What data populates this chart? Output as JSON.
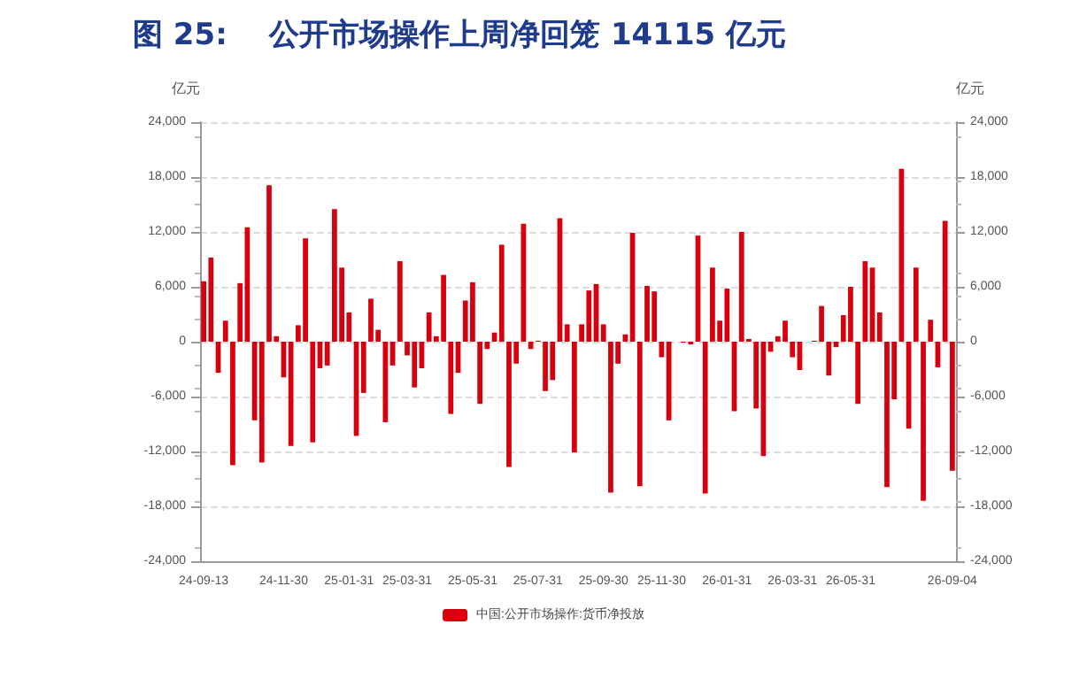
{
  "chart_data": {
    "type": "bar",
    "title": "图 25:    公开市场操作上周净回笼 14115 亿元",
    "ylabel": "亿元",
    "y2label": "亿元",
    "categories": [
      "24-09-13",
      null,
      null,
      null,
      null,
      null,
      null,
      null,
      null,
      null,
      null,
      "24-11-30",
      null,
      null,
      null,
      null,
      null,
      null,
      null,
      null,
      "25-01-31",
      null,
      null,
      null,
      null,
      null,
      null,
      null,
      "25-03-31",
      null,
      null,
      null,
      null,
      null,
      null,
      null,
      null,
      "25-05-31",
      null,
      null,
      null,
      null,
      null,
      null,
      null,
      null,
      "25-07-31",
      null,
      null,
      null,
      null,
      null,
      null,
      null,
      null,
      "25-09-30",
      null,
      null,
      null,
      null,
      null,
      null,
      null,
      "25-11-30",
      null,
      null,
      null,
      null,
      null,
      null,
      null,
      null,
      "26-01-31",
      null,
      null,
      null,
      null,
      null,
      null,
      null,
      null,
      "26-03-31",
      null,
      null,
      null,
      null,
      null,
      null,
      null,
      "26-05-31",
      null,
      null,
      null,
      null,
      null,
      null,
      null,
      null,
      null,
      null,
      null,
      null,
      null,
      "26-09-04"
    ],
    "series": [
      {
        "name": "中国:公开市场操作:货币净投放",
        "color": "#d7000f",
        "values": [
          6600,
          9200,
          -3400,
          2300,
          -13500,
          6400,
          12500,
          -8600,
          -13200,
          17100,
          600,
          -3900,
          -11400,
          1800,
          11300,
          -11000,
          -2900,
          -2600,
          14500,
          8100,
          3200,
          -10300,
          -5600,
          4700,
          1300,
          -8800,
          -2600,
          8800,
          -1500,
          -5000,
          -2900,
          3200,
          600,
          7300,
          -7900,
          -3400,
          4500,
          6500,
          -6800,
          -800,
          1000,
          10600,
          -13700,
          -2400,
          12900,
          -800,
          100,
          -5400,
          -4200,
          13500,
          1900,
          -12100,
          1900,
          5600,
          6300,
          1900,
          -16500,
          -2400,
          800,
          11900,
          -15800,
          6100,
          5500,
          -1700,
          -8600,
          0,
          -100,
          -300,
          11600,
          -16600,
          8100,
          2300,
          5800,
          -7600,
          12000,
          300,
          -7300,
          -12500,
          -1100,
          600,
          2300,
          -1700,
          -3100,
          0,
          100,
          3900,
          -3700,
          -600,
          2900,
          6000,
          -6800,
          8800,
          8100,
          3200,
          -15900,
          -6300,
          18900,
          -9500,
          8100,
          -17400,
          2400,
          -2800,
          13200,
          -14100
        ]
      }
    ],
    "ylim": [
      -24000,
      24000
    ],
    "yticks": [
      {
        "value": -24000,
        "label": "-24,000"
      },
      {
        "value": -18000,
        "label": "-18,000"
      },
      {
        "value": -12000,
        "label": "-12,000"
      },
      {
        "value": -6000,
        "label": "-6,000"
      },
      0,
      {
        "value": 6000,
        "label": "6,000"
      },
      {
        "value": 12000,
        "label": "12,000"
      },
      {
        "value": 18000,
        "label": "18,000"
      },
      {
        "value": 24000,
        "label": "24,000"
      }
    ],
    "y2lim": [
      -24000,
      24000
    ],
    "y2ticks": [
      {
        "value": -24000,
        "label": "-24,000"
      },
      {
        "value": -18000,
        "label": "-18,000"
      },
      {
        "value": -12000,
        "label": "-12,000"
      },
      {
        "value": -6000,
        "label": "-6,000"
      },
      0,
      {
        "value": 6000,
        "label": "6,000"
      },
      {
        "value": 12000,
        "label": "12,000"
      },
      {
        "value": 18000,
        "label": "18,000"
      },
      {
        "value": 24000,
        "label": "24,000"
      }
    ],
    "grid": "y",
    "legend": "bottom"
  }
}
